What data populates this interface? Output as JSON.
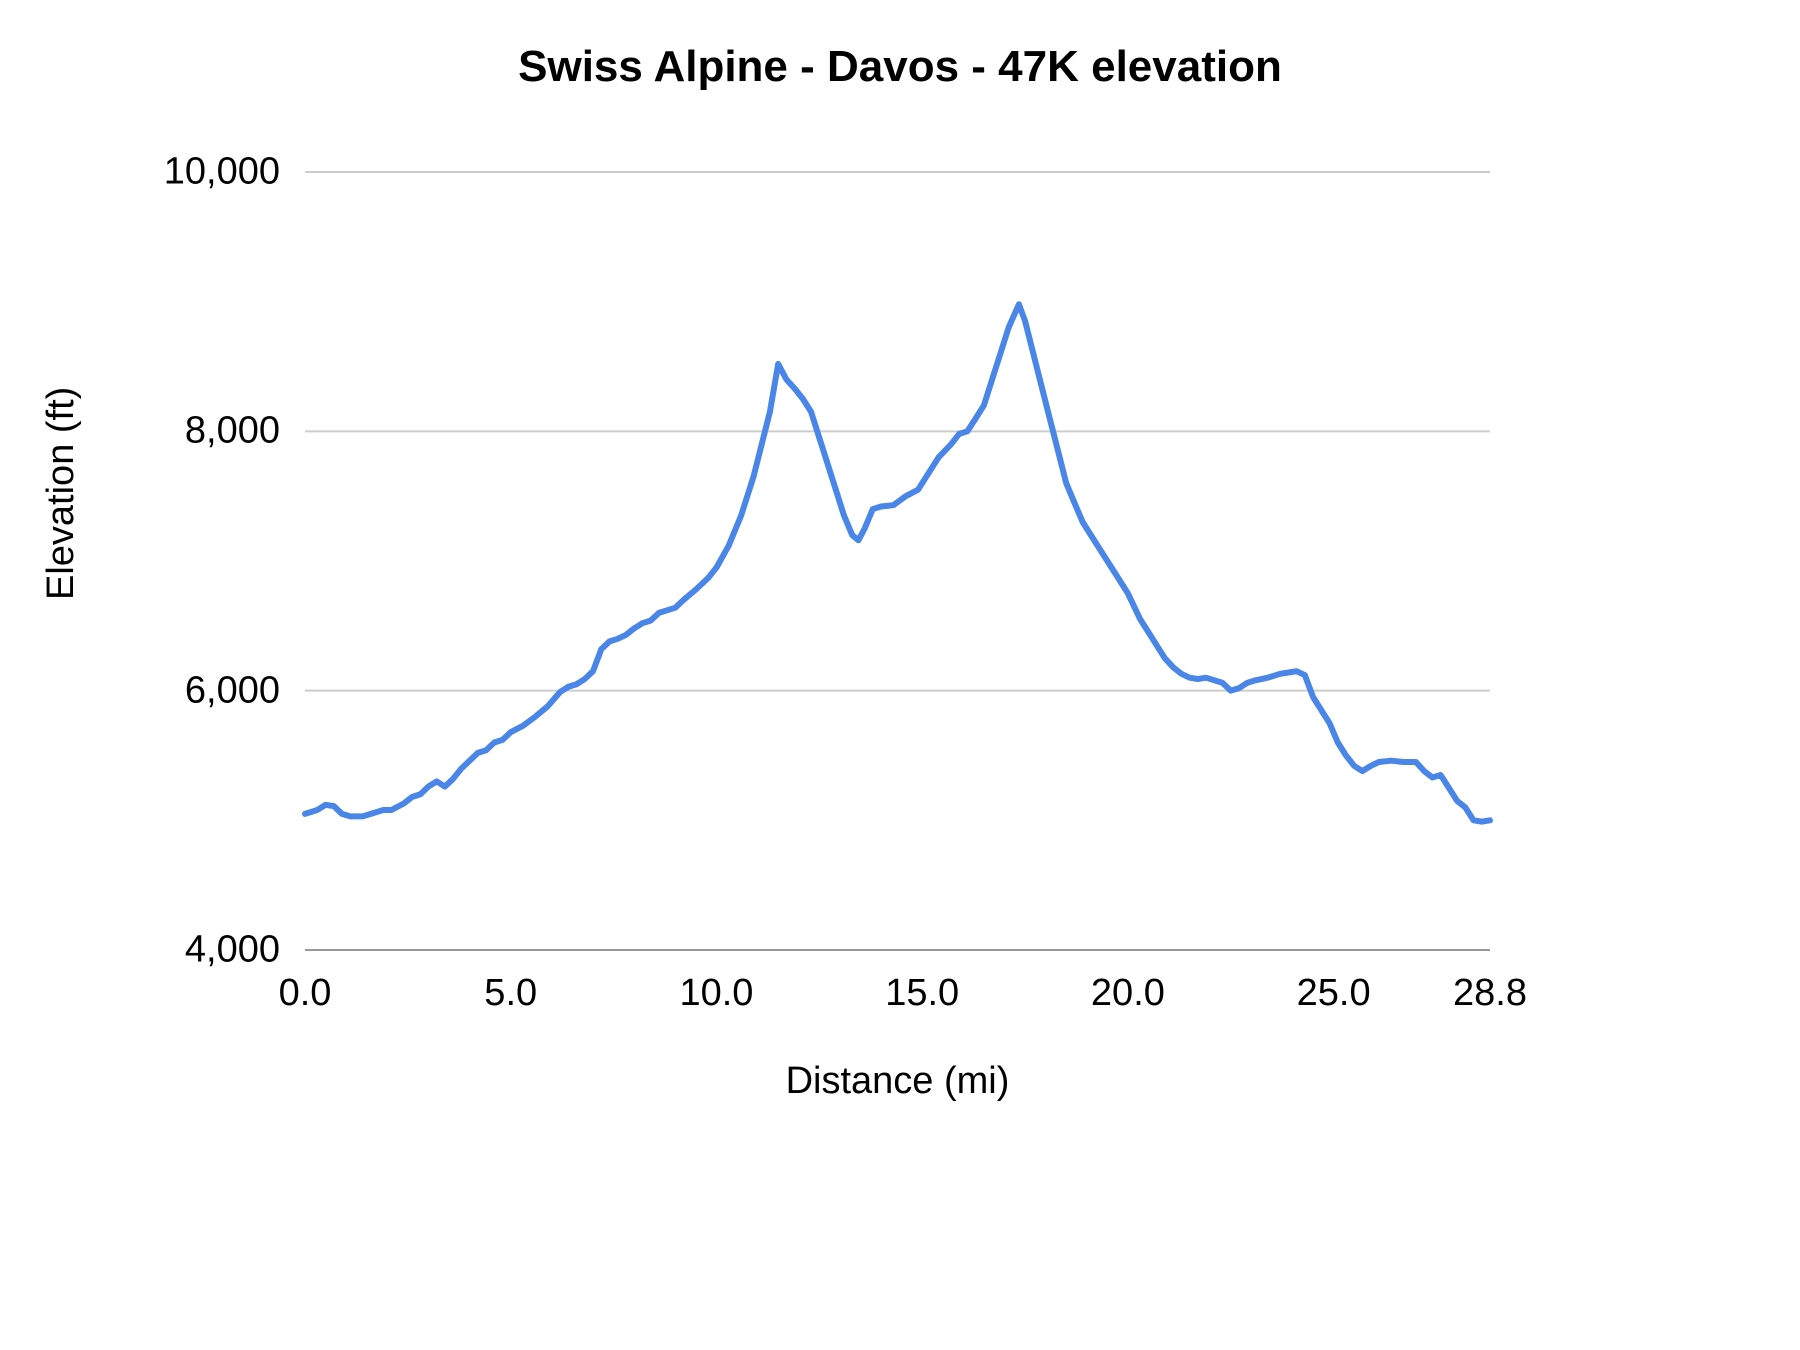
{
  "chart_data": {
    "type": "line",
    "title": "Swiss Alpine - Davos - 47K elevation",
    "xlabel": "Distance (mi)",
    "ylabel": "Elevation (ft)",
    "xlim": [
      0.0,
      28.8
    ],
    "ylim": [
      4000,
      10000
    ],
    "grid": "horizontal-only",
    "legend": "none",
    "line_color": "#4a86e8",
    "grid_color": "#cccccc",
    "axis_color": "#999999",
    "x_ticks": [
      {
        "value": 0.0,
        "label": "0.0"
      },
      {
        "value": 5.0,
        "label": "5.0"
      },
      {
        "value": 10.0,
        "label": "10.0"
      },
      {
        "value": 15.0,
        "label": "15.0"
      },
      {
        "value": 20.0,
        "label": "20.0"
      },
      {
        "value": 25.0,
        "label": "25.0"
      },
      {
        "value": 28.8,
        "label": "28.8"
      }
    ],
    "y_ticks": [
      {
        "value": 4000,
        "label": "4,000"
      },
      {
        "value": 6000,
        "label": "6,000"
      },
      {
        "value": 8000,
        "label": "8,000"
      },
      {
        "value": 10000,
        "label": "10,000"
      }
    ],
    "series": [
      {
        "name": "Elevation profile",
        "points": [
          [
            0.0,
            5050
          ],
          [
            0.3,
            5080
          ],
          [
            0.5,
            5120
          ],
          [
            0.7,
            5110
          ],
          [
            0.9,
            5050
          ],
          [
            1.1,
            5030
          ],
          [
            1.4,
            5030
          ],
          [
            1.6,
            5050
          ],
          [
            1.9,
            5080
          ],
          [
            2.1,
            5080
          ],
          [
            2.4,
            5130
          ],
          [
            2.6,
            5180
          ],
          [
            2.8,
            5200
          ],
          [
            3.0,
            5260
          ],
          [
            3.2,
            5300
          ],
          [
            3.4,
            5260
          ],
          [
            3.6,
            5320
          ],
          [
            3.8,
            5400
          ],
          [
            4.0,
            5460
          ],
          [
            4.2,
            5520
          ],
          [
            4.4,
            5540
          ],
          [
            4.6,
            5600
          ],
          [
            4.8,
            5620
          ],
          [
            5.0,
            5680
          ],
          [
            5.3,
            5730
          ],
          [
            5.6,
            5800
          ],
          [
            5.9,
            5880
          ],
          [
            6.2,
            5990
          ],
          [
            6.4,
            6030
          ],
          [
            6.6,
            6050
          ],
          [
            6.8,
            6090
          ],
          [
            7.0,
            6150
          ],
          [
            7.2,
            6320
          ],
          [
            7.4,
            6380
          ],
          [
            7.6,
            6400
          ],
          [
            7.8,
            6430
          ],
          [
            8.0,
            6480
          ],
          [
            8.2,
            6520
          ],
          [
            8.4,
            6540
          ],
          [
            8.6,
            6600
          ],
          [
            8.8,
            6620
          ],
          [
            9.0,
            6640
          ],
          [
            9.2,
            6700
          ],
          [
            9.5,
            6780
          ],
          [
            9.8,
            6870
          ],
          [
            10.0,
            6950
          ],
          [
            10.3,
            7120
          ],
          [
            10.6,
            7350
          ],
          [
            10.9,
            7650
          ],
          [
            11.1,
            7900
          ],
          [
            11.3,
            8150
          ],
          [
            11.5,
            8520
          ],
          [
            11.7,
            8400
          ],
          [
            11.9,
            8330
          ],
          [
            12.1,
            8250
          ],
          [
            12.3,
            8150
          ],
          [
            12.5,
            7950
          ],
          [
            12.7,
            7750
          ],
          [
            12.9,
            7550
          ],
          [
            13.1,
            7350
          ],
          [
            13.3,
            7200
          ],
          [
            13.45,
            7160
          ],
          [
            13.6,
            7250
          ],
          [
            13.8,
            7400
          ],
          [
            14.0,
            7420
          ],
          [
            14.3,
            7430
          ],
          [
            14.6,
            7500
          ],
          [
            14.9,
            7550
          ],
          [
            15.1,
            7650
          ],
          [
            15.4,
            7800
          ],
          [
            15.7,
            7900
          ],
          [
            15.9,
            7980
          ],
          [
            16.1,
            8000
          ],
          [
            16.3,
            8100
          ],
          [
            16.5,
            8200
          ],
          [
            16.7,
            8400
          ],
          [
            16.9,
            8600
          ],
          [
            17.1,
            8800
          ],
          [
            17.35,
            8980
          ],
          [
            17.5,
            8850
          ],
          [
            17.7,
            8600
          ],
          [
            17.9,
            8350
          ],
          [
            18.1,
            8100
          ],
          [
            18.3,
            7850
          ],
          [
            18.5,
            7600
          ],
          [
            18.7,
            7450
          ],
          [
            18.9,
            7300
          ],
          [
            19.1,
            7200
          ],
          [
            19.4,
            7050
          ],
          [
            19.7,
            6900
          ],
          [
            20.0,
            6750
          ],
          [
            20.3,
            6550
          ],
          [
            20.6,
            6400
          ],
          [
            20.9,
            6250
          ],
          [
            21.1,
            6180
          ],
          [
            21.3,
            6130
          ],
          [
            21.5,
            6100
          ],
          [
            21.7,
            6090
          ],
          [
            21.9,
            6100
          ],
          [
            22.1,
            6080
          ],
          [
            22.3,
            6060
          ],
          [
            22.5,
            6000
          ],
          [
            22.7,
            6020
          ],
          [
            22.9,
            6060
          ],
          [
            23.1,
            6080
          ],
          [
            23.4,
            6100
          ],
          [
            23.7,
            6130
          ],
          [
            23.9,
            6140
          ],
          [
            24.1,
            6150
          ],
          [
            24.3,
            6120
          ],
          [
            24.5,
            5950
          ],
          [
            24.7,
            5850
          ],
          [
            24.9,
            5750
          ],
          [
            25.1,
            5600
          ],
          [
            25.3,
            5500
          ],
          [
            25.5,
            5420
          ],
          [
            25.7,
            5380
          ],
          [
            25.9,
            5420
          ],
          [
            26.1,
            5450
          ],
          [
            26.4,
            5460
          ],
          [
            26.7,
            5450
          ],
          [
            27.0,
            5450
          ],
          [
            27.2,
            5380
          ],
          [
            27.4,
            5330
          ],
          [
            27.6,
            5350
          ],
          [
            27.8,
            5250
          ],
          [
            28.0,
            5150
          ],
          [
            28.2,
            5100
          ],
          [
            28.4,
            5000
          ],
          [
            28.6,
            4990
          ],
          [
            28.8,
            5000
          ]
        ]
      }
    ]
  }
}
